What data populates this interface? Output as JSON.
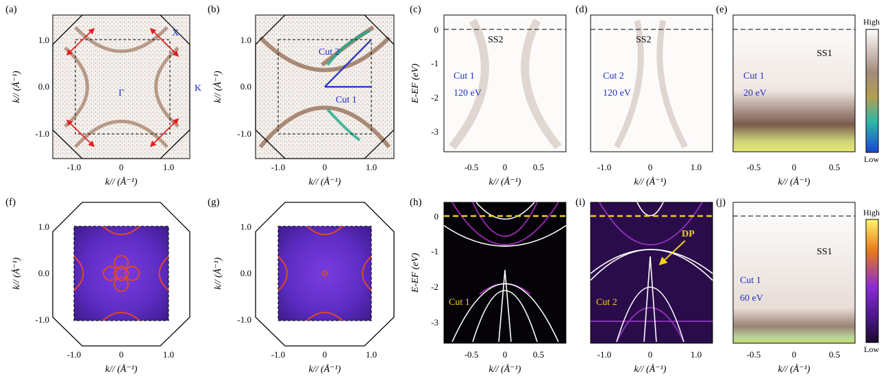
{
  "figure": {
    "panels": [
      {
        "id": "a",
        "label": "(a)",
        "kind": "fermi_map_arpes",
        "ylabel": "k// (Å⁻¹)",
        "xlabel": "k// (Å⁻¹)",
        "xticks": [
          "-1.0",
          "0",
          "1.0"
        ],
        "yticks": [
          "1.0",
          "0.0",
          "-1.0"
        ],
        "annotations": [
          "X",
          "K",
          "Γ"
        ]
      },
      {
        "id": "b",
        "label": "(b)",
        "kind": "fermi_map_arpes",
        "ylabel": "k// (Å⁻¹)",
        "xlabel": "k// (Å⁻¹)",
        "xticks": [
          "-1.0",
          "0",
          "1.0"
        ],
        "yticks": [
          "1.0",
          "0.0",
          "-1.0"
        ],
        "annotations": [
          "Cut 2",
          "Cut 1"
        ]
      },
      {
        "id": "c",
        "label": "(c)",
        "kind": "band_arpes",
        "ylabel": "E-EF (eV)",
        "xlabel": "k// (Å⁻¹)",
        "xticks": [
          "-0.5",
          "0",
          "0.5"
        ],
        "yticks": [
          "0",
          "-1",
          "-2",
          "-3"
        ],
        "annotations": [
          "SS2",
          "Cut 1",
          "120 eV"
        ]
      },
      {
        "id": "d",
        "label": "(d)",
        "kind": "band_arpes",
        "xlabel": "k// (Å⁻¹)",
        "xticks": [
          "-1.0",
          "0",
          "1.0"
        ],
        "annotations": [
          "SS2",
          "Cut 2",
          "120 eV"
        ]
      },
      {
        "id": "e",
        "label": "(e)",
        "kind": "band_arpes",
        "xlabel": "k// (Å⁻¹)",
        "xticks": [
          "-0.5",
          "0",
          "0.5"
        ],
        "annotations": [
          "SS1",
          "Cut 1",
          "20 eV"
        ]
      },
      {
        "id": "f",
        "label": "(f)",
        "kind": "fermi_map_calc",
        "ylabel": "k// (Å⁻¹)",
        "xlabel": "k// (Å⁻¹)",
        "xticks": [
          "-1.0",
          "0",
          "1.0"
        ],
        "yticks": [
          "1.0",
          "0.0",
          "-1.0"
        ]
      },
      {
        "id": "g",
        "label": "(g)",
        "kind": "fermi_map_calc",
        "ylabel": "k// (Å⁻¹)",
        "xlabel": "k// (Å⁻¹)",
        "xticks": [
          "-1.0",
          "0",
          "1.0"
        ],
        "yticks": [
          "1.0",
          "0.0",
          "-1.0"
        ]
      },
      {
        "id": "h",
        "label": "(h)",
        "kind": "band_calc",
        "ylabel": "E-EF (eV)",
        "xlabel": "k// (Å⁻¹)",
        "xticks": [
          "-0.5",
          "0",
          "0.5"
        ],
        "yticks": [
          "0",
          "-1",
          "-2",
          "-3"
        ],
        "annotations": [
          "Cut 1"
        ]
      },
      {
        "id": "i",
        "label": "(i)",
        "kind": "band_calc",
        "xlabel": "k// (Å⁻¹)",
        "xticks": [
          "-1.0",
          "0",
          "1.0"
        ],
        "annotations": [
          "DP",
          "Cut 2"
        ]
      },
      {
        "id": "j",
        "label": "(j)",
        "kind": "band_arpes",
        "xlabel": "k// (Å⁻¹)",
        "xticks": [
          "-0.5",
          "0",
          "0.5"
        ],
        "annotations": [
          "SS1",
          "Cut 1",
          "60 eV"
        ]
      }
    ],
    "colorbar_top": {
      "high": "High",
      "low": "Low"
    },
    "colorbar_bottom": {
      "high": "High",
      "low": "Low"
    }
  },
  "colors": {
    "annot_blue": "#1d2fc8",
    "arrow_red": "#e02020",
    "dash_yellow": "#f2d21b",
    "calc_bg": "#2a0c4a",
    "band_white": "#ffffff"
  }
}
